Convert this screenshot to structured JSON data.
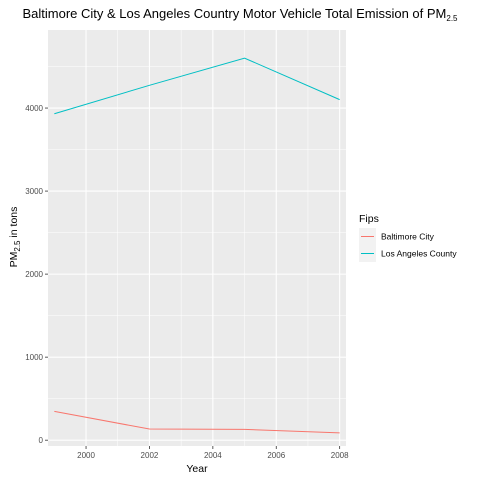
{
  "chart_data": {
    "type": "line",
    "title": {
      "text": "Baltimore City & Los Angeles Country Motor Vehicle Total Emission of PM",
      "subscript": "2.5"
    },
    "xlabel": "Year",
    "ylabel": {
      "prefix": "PM",
      "subscript": "2.5",
      "suffix": " in tons"
    },
    "x": [
      1999,
      2002,
      2005,
      2008
    ],
    "xlim": [
      1998.8,
      2008.2
    ],
    "ylim": [
      -70,
      4940
    ],
    "x_ticks": [
      2000,
      2002,
      2004,
      2006,
      2008
    ],
    "x_tick_labels": [
      "2000",
      "2002",
      "2004",
      "2006",
      "2008"
    ],
    "y_ticks": [
      0,
      1000,
      2000,
      3000,
      4000
    ],
    "y_tick_labels": [
      "0",
      "1000",
      "2000",
      "3000",
      "4000"
    ],
    "grid": true,
    "legend": {
      "title": "Fips",
      "position": "right"
    },
    "series": [
      {
        "name": "Baltimore City",
        "color": "#F8766D",
        "values": [
          346.8,
          134.3,
          130.4,
          88.3
        ]
      },
      {
        "name": "Los Angeles County",
        "color": "#00BFC4",
        "values": [
          3931.1,
          4274.0,
          4601.4,
          4101.3
        ]
      }
    ]
  }
}
